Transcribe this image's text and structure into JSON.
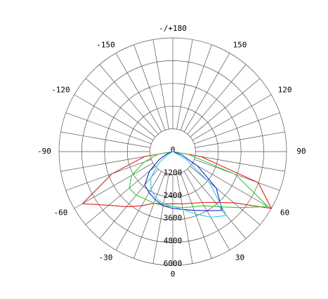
{
  "chart_data": {
    "type": "polar",
    "theta": [
      -90,
      -80,
      -70,
      -60,
      -50,
      -40,
      -30,
      -20,
      -10,
      0,
      10,
      20,
      30,
      40,
      50,
      60,
      70,
      80,
      90
    ],
    "series": [
      {
        "color": "#e02020",
        "values": [
          0,
          1500,
          3400,
          5500,
          4400,
          3800,
          3300,
          2900,
          2800,
          2750,
          2800,
          2900,
          3100,
          3500,
          4200,
          6000,
          4800,
          1500,
          0
        ]
      },
      {
        "color": "#30d030",
        "values": [
          0,
          800,
          1600,
          2500,
          3000,
          3000,
          2900,
          2900,
          2900,
          2900,
          3000,
          3100,
          3300,
          3800,
          4600,
          5800,
          3500,
          800,
          0
        ]
      },
      {
        "color": "#2020d0",
        "values": [
          0,
          0,
          300,
          800,
          1600,
          2300,
          2500,
          2700,
          2900,
          3000,
          3100,
          3300,
          3600,
          4050,
          3000,
          1500,
          500,
          0,
          0
        ]
      },
      {
        "color": "#20d0e0",
        "values": [
          0,
          0,
          0,
          300,
          1000,
          1800,
          2300,
          2600,
          2800,
          2900,
          3100,
          3500,
          4000,
          4400,
          2500,
          800,
          0,
          0,
          0
        ]
      }
    ],
    "rlim": [
      0,
      6000
    ],
    "rticks": [
      0,
      1200,
      2400,
      3600,
      4800,
      6000
    ],
    "angle_ticks": [
      {
        "value": 180,
        "label": "-/+180"
      },
      150,
      120,
      90,
      60,
      30,
      0,
      -30,
      -60,
      -90,
      -120,
      -150
    ]
  }
}
